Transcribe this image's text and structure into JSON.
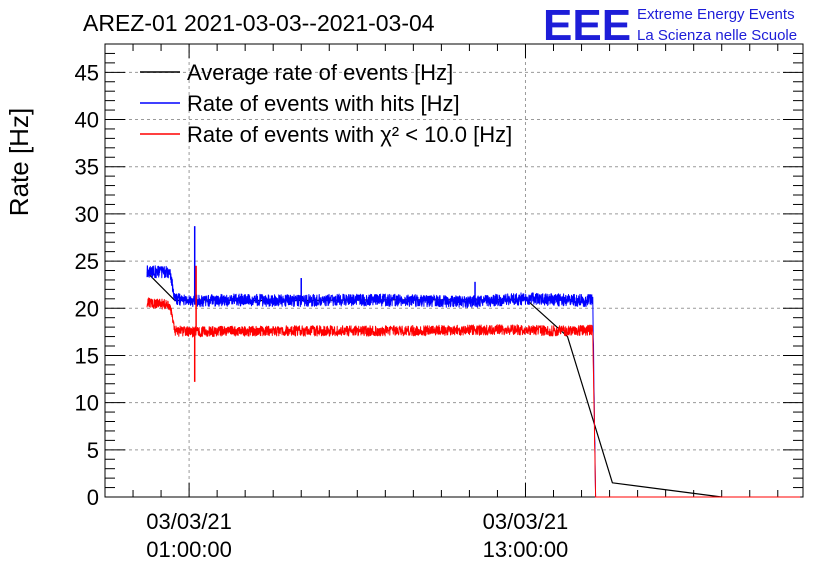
{
  "header": {
    "title": "AREZ-01 2021-03-03--2021-03-04",
    "logo_text": "EEE",
    "logo_line1": "Extreme Energy Events",
    "logo_line2": "La Scienza nelle Scuole"
  },
  "chart_data": {
    "type": "line",
    "ylabel": "Rate [Hz]",
    "xlabel": "",
    "ylim": [
      0,
      48
    ],
    "yticks": [
      0,
      5,
      10,
      15,
      20,
      25,
      30,
      35,
      40,
      45
    ],
    "xlim_hours": [
      -2.0,
      22.9
    ],
    "xticks": [
      {
        "hour": 1,
        "line1": "03/03/21",
        "line2": "01:00:00"
      },
      {
        "hour": 13,
        "line1": "03/03/21",
        "line2": "13:00:00"
      }
    ],
    "grid": true,
    "legend_position": "top-left",
    "colors": {
      "average": "#000000",
      "hits": "#0000ff",
      "chi2": "#ff0000"
    },
    "series": [
      {
        "key": "average",
        "name": "Average rate of events [Hz]",
        "color": "#000000",
        "x": [
          -0.5,
          0.5,
          1.0,
          4.0,
          8.0,
          12.0,
          13.0,
          14.5,
          16.1,
          20.0
        ],
        "y": [
          23.8,
          20.8,
          20.9,
          20.8,
          20.9,
          20.9,
          21.0,
          17.0,
          1.5,
          0.0
        ]
      },
      {
        "key": "hits",
        "name": "Rate of events with hits [Hz]",
        "color": "#0000ff",
        "x": [
          -0.5,
          0.3,
          0.5,
          1.0,
          3.3,
          3.8,
          4.5,
          7.0,
          11.0,
          13.0,
          14.0,
          15.4,
          15.5,
          22.8
        ],
        "y": [
          23.9,
          23.8,
          21.0,
          20.8,
          20.9,
          20.8,
          20.8,
          20.9,
          20.7,
          21.0,
          20.9,
          20.8,
          0.0,
          0.0
        ],
        "spikes": [
          {
            "x": 1.2,
            "y": 28.7
          },
          {
            "x": 5.0,
            "y": 23.2
          },
          {
            "x": 11.2,
            "y": 22.8
          }
        ]
      },
      {
        "key": "chi2",
        "name": "Rate of events with χ² < 10.0 [Hz]",
        "color": "#ff0000",
        "x": [
          -0.5,
          0.3,
          0.5,
          1.0,
          4.0,
          8.0,
          12.0,
          13.0,
          14.0,
          15.4,
          15.5,
          22.8
        ],
        "y": [
          20.6,
          20.4,
          17.6,
          17.5,
          17.6,
          17.6,
          17.7,
          17.7,
          17.6,
          17.7,
          0.0,
          0.0
        ],
        "spikes": [
          {
            "x": 1.2,
            "y": 12.2
          },
          {
            "x": 1.25,
            "y": 24.5
          }
        ]
      }
    ]
  }
}
